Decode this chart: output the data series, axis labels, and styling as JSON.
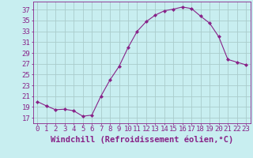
{
  "x": [
    0,
    1,
    2,
    3,
    4,
    5,
    6,
    7,
    8,
    9,
    10,
    11,
    12,
    13,
    14,
    15,
    16,
    17,
    18,
    19,
    20,
    21,
    22,
    23
  ],
  "y": [
    20.0,
    19.2,
    18.5,
    18.6,
    18.3,
    17.3,
    17.5,
    21.0,
    24.0,
    26.5,
    30.0,
    33.0,
    34.8,
    36.0,
    36.8,
    37.1,
    37.5,
    37.2,
    35.8,
    34.5,
    32.0,
    27.8,
    27.3,
    26.8
  ],
  "line_color": "#882288",
  "marker": "D",
  "background_color": "#c8eef0",
  "grid_color": "#aacccc",
  "xlabel": "Windchill (Refroidissement éolien,°C)",
  "ylabel_ticks": [
    17,
    19,
    21,
    23,
    25,
    27,
    29,
    31,
    33,
    35,
    37
  ],
  "ylim": [
    16.0,
    38.5
  ],
  "xlim": [
    -0.5,
    23.5
  ],
  "tick_color": "#882288",
  "label_color": "#882288",
  "font_size": 6.5,
  "xlabel_fontsize": 7.5
}
